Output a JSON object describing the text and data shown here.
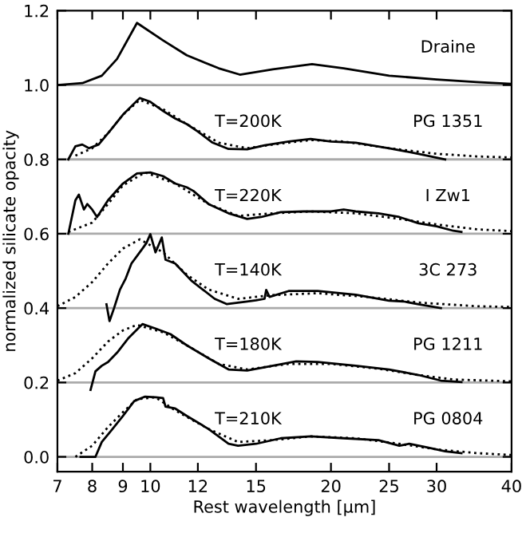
{
  "chart_data": {
    "type": "line",
    "xlabel": "Rest wavelength [μm]",
    "ylabel": "normalized silicate opacity",
    "log": "x",
    "xlim": [
      7,
      40
    ],
    "ylim": [
      -0.04,
      1.2
    ],
    "xticks": [
      7,
      8,
      9,
      10,
      12,
      15,
      20,
      25,
      30,
      40
    ],
    "yticks": [
      {
        "value": 0,
        "label": "0.0"
      },
      {
        "value": 0.2,
        "label": "0.2"
      },
      {
        "value": 0.4,
        "label": "0.4"
      },
      {
        "value": 0.6,
        "label": "0.6"
      },
      {
        "value": 0.8,
        "label": "0.8"
      },
      {
        "value": 1.0,
        "label": "1.0"
      },
      {
        "value": 1.2,
        "label": "1.2"
      }
    ],
    "grid": false,
    "legend": false,
    "ref_lines": [
      {
        "axis": "y",
        "value": 0,
        "color": "#aaaaaa"
      },
      {
        "axis": "y",
        "value": 0.2,
        "color": "#aaaaaa"
      },
      {
        "axis": "y",
        "value": 0.4,
        "color": "#aaaaaa"
      },
      {
        "axis": "y",
        "value": 0.6,
        "color": "#aaaaaa"
      },
      {
        "axis": "y",
        "value": 0.8,
        "color": "#aaaaaa"
      },
      {
        "axis": "y",
        "value": 1.0,
        "color": "#aaaaaa"
      }
    ],
    "annotations": [
      "T=200K",
      "T=220K",
      "T=140K",
      "T=180K",
      "T=210K"
    ],
    "series": [
      {
        "name": "Draine",
        "color": "#000000",
        "line_style": "solid",
        "x": [
          7,
          7.7,
          8.3,
          8.8,
          9.5,
          10.5,
          11.5,
          13,
          14.1,
          16,
          18.6,
          21,
          25,
          30,
          35,
          40
        ],
        "values": [
          1.0,
          1.005,
          1.025,
          1.07,
          1.167,
          1.12,
          1.08,
          1.045,
          1.028,
          1.042,
          1.056,
          1.045,
          1.025,
          1.015,
          1.008,
          1.003
        ]
      },
      {
        "color": "#000000",
        "line_style": "dotted",
        "x": [
          7.5,
          8,
          8.5,
          9,
          9.6,
          10.5,
          11.5,
          13,
          14.5,
          16,
          18.5,
          21,
          25,
          30,
          35,
          40
        ],
        "values": [
          0.81,
          0.83,
          0.87,
          0.92,
          0.96,
          0.935,
          0.895,
          0.845,
          0.83,
          0.84,
          0.852,
          0.848,
          0.83,
          0.815,
          0.808,
          0.805
        ]
      },
      {
        "name": "PG 1351",
        "color": "#000000",
        "line_style": "solid",
        "x": [
          7.3,
          7.5,
          7.7,
          7.9,
          8.2,
          8.6,
          9.0,
          9.6,
          10.0,
          10.5,
          11,
          11.5,
          12,
          12.7,
          13.5,
          14.5,
          15.5,
          17,
          18.5,
          20,
          22,
          25,
          28,
          31
        ],
        "values": [
          0.8,
          0.835,
          0.84,
          0.83,
          0.84,
          0.88,
          0.92,
          0.965,
          0.955,
          0.93,
          0.91,
          0.895,
          0.875,
          0.845,
          0.828,
          0.827,
          0.838,
          0.848,
          0.855,
          0.848,
          0.845,
          0.83,
          0.815,
          0.8
        ]
      },
      {
        "color": "#000000",
        "line_style": "dotted",
        "x": [
          7.3,
          8,
          8.5,
          9,
          9.8,
          11,
          12.5,
          14,
          16,
          18.5,
          22,
          26,
          30,
          35,
          40
        ],
        "values": [
          0.605,
          0.63,
          0.68,
          0.73,
          0.765,
          0.735,
          0.68,
          0.648,
          0.655,
          0.66,
          0.655,
          0.64,
          0.625,
          0.612,
          0.607
        ]
      },
      {
        "name": "I Zw1",
        "color": "#000000",
        "line_style": "solid",
        "x": [
          7.3,
          7.5,
          7.6,
          7.75,
          7.85,
          8.0,
          8.15,
          8.5,
          9.0,
          9.5,
          10,
          10.5,
          11,
          11.5,
          11.8,
          12.5,
          13.5,
          14.5,
          15.3,
          16.5,
          18,
          20,
          21,
          22,
          24,
          26,
          28,
          30,
          32,
          33
        ],
        "values": [
          0.6,
          0.69,
          0.705,
          0.665,
          0.68,
          0.665,
          0.645,
          0.69,
          0.735,
          0.762,
          0.765,
          0.755,
          0.735,
          0.725,
          0.715,
          0.68,
          0.655,
          0.64,
          0.645,
          0.658,
          0.66,
          0.66,
          0.665,
          0.66,
          0.655,
          0.645,
          0.628,
          0.62,
          0.608,
          0.605
        ]
      },
      {
        "color": "#000000",
        "line_style": "dotted",
        "x": [
          7,
          7.5,
          8,
          8.5,
          9,
          9.6,
          10.5,
          11.5,
          12.5,
          14,
          16,
          19,
          23,
          28,
          35,
          40
        ],
        "values": [
          0.405,
          0.43,
          0.47,
          0.52,
          0.56,
          0.585,
          0.55,
          0.49,
          0.45,
          0.425,
          0.435,
          0.44,
          0.43,
          0.415,
          0.405,
          0.403
        ]
      },
      {
        "name": "3C 273",
        "color": "#000000",
        "line_style": "solid",
        "x": [
          8.45,
          8.55,
          8.7,
          8.9,
          9.1,
          9.3,
          9.5,
          9.7,
          9.85,
          10.0,
          10.2,
          10.45,
          10.6,
          11,
          11.7,
          12.8,
          13.4,
          14.5,
          15.0,
          15.5,
          15.6,
          15.8,
          17,
          19,
          22,
          25,
          26.4,
          28,
          30.5
        ],
        "values": [
          0.41,
          0.365,
          0.4,
          0.45,
          0.48,
          0.52,
          0.54,
          0.56,
          0.575,
          0.599,
          0.55,
          0.59,
          0.53,
          0.52,
          0.474,
          0.425,
          0.411,
          0.418,
          0.421,
          0.425,
          0.449,
          0.43,
          0.446,
          0.446,
          0.436,
          0.42,
          0.418,
          0.41,
          0.4
        ]
      },
      {
        "color": "#000000",
        "line_style": "dotted",
        "x": [
          7,
          7.5,
          8,
          8.5,
          9,
          9.5,
          10.5,
          11.5,
          13,
          14.5,
          17,
          20,
          24,
          28,
          32,
          40
        ],
        "values": [
          0.205,
          0.225,
          0.265,
          0.31,
          0.34,
          0.355,
          0.335,
          0.3,
          0.25,
          0.235,
          0.25,
          0.25,
          0.237,
          0.22,
          0.208,
          0.203
        ]
      },
      {
        "name": "PG 1211",
        "color": "#000000",
        "line_style": "solid",
        "x": [
          7.95,
          8.1,
          8.3,
          8.5,
          8.8,
          9.2,
          9.7,
          10.2,
          10.8,
          11.5,
          12.5,
          13.5,
          14.5,
          16,
          17.5,
          19,
          22,
          25,
          28,
          30.5,
          33
        ],
        "values": [
          0.18,
          0.23,
          0.245,
          0.255,
          0.28,
          0.32,
          0.357,
          0.345,
          0.33,
          0.3,
          0.265,
          0.235,
          0.232,
          0.245,
          0.257,
          0.255,
          0.245,
          0.235,
          0.22,
          0.205,
          0.201
        ]
      },
      {
        "color": "#000000",
        "line_style": "dotted",
        "x": [
          7.5,
          8,
          8.5,
          9,
          9.5,
          10.2,
          11,
          12.5,
          14,
          16,
          18.5,
          22,
          26,
          30,
          35,
          40
        ],
        "values": [
          0.0,
          0.03,
          0.08,
          0.12,
          0.155,
          0.16,
          0.125,
          0.075,
          0.04,
          0.045,
          0.055,
          0.05,
          0.035,
          0.02,
          0.01,
          0.005
        ]
      },
      {
        "name": "PG 0804",
        "color": "#000000",
        "line_style": "solid",
        "x": [
          7.65,
          8.1,
          8.3,
          8.6,
          9,
          9.4,
          9.8,
          10.2,
          10.5,
          10.6,
          11,
          11.5,
          12.5,
          13.5,
          14,
          15,
          16.5,
          18.5,
          21,
          24,
          26,
          27,
          29,
          31,
          33
        ],
        "values": [
          0.0,
          0.0,
          0.04,
          0.07,
          0.11,
          0.15,
          0.162,
          0.16,
          0.158,
          0.135,
          0.13,
          0.11,
          0.075,
          0.035,
          0.03,
          0.035,
          0.05,
          0.055,
          0.05,
          0.045,
          0.03,
          0.035,
          0.025,
          0.015,
          0.01
        ]
      }
    ]
  }
}
